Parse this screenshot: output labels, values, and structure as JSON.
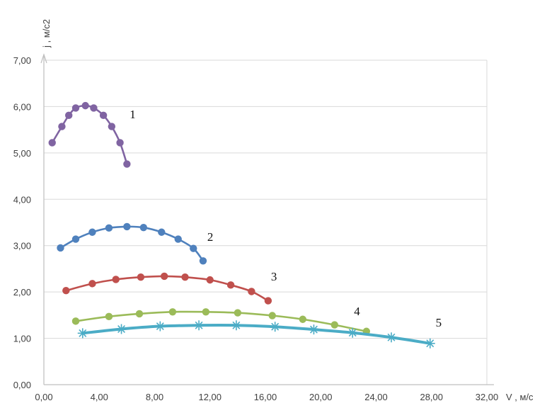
{
  "chart_data": {
    "type": "line",
    "xlabel": "V , м/с",
    "ylabel": "j , м/с2",
    "xlim": [
      0,
      32
    ],
    "ylim": [
      0,
      7
    ],
    "xticks": [
      "0,00",
      "4,00",
      "8,00",
      "12,00",
      "16,00",
      "20,00",
      "24,00",
      "28,00",
      "32,00"
    ],
    "yticks": [
      "0,00",
      "1,00",
      "2,00",
      "3,00",
      "4,00",
      "5,00",
      "6,00",
      "7,00"
    ],
    "grid": true,
    "legend": "none",
    "series": [
      {
        "name": "1",
        "color": "#8064a2",
        "marker": "circle",
        "points": [
          [
            0.6,
            5.22
          ],
          [
            1.3,
            5.57
          ],
          [
            1.8,
            5.81
          ],
          [
            2.3,
            5.97
          ],
          [
            3.0,
            6.02
          ],
          [
            3.6,
            5.97
          ],
          [
            4.3,
            5.81
          ],
          [
            4.9,
            5.57
          ],
          [
            5.5,
            5.22
          ],
          [
            6.0,
            4.76
          ]
        ]
      },
      {
        "name": "2",
        "color": "#4f81bd",
        "marker": "circle",
        "points": [
          [
            1.2,
            2.95
          ],
          [
            2.3,
            3.14
          ],
          [
            3.5,
            3.29
          ],
          [
            4.7,
            3.38
          ],
          [
            6.0,
            3.41
          ],
          [
            7.2,
            3.39
          ],
          [
            8.5,
            3.29
          ],
          [
            9.7,
            3.14
          ],
          [
            10.8,
            2.94
          ],
          [
            11.5,
            2.67
          ]
        ]
      },
      {
        "name": "3",
        "color": "#c0504d",
        "marker": "circle",
        "points": [
          [
            1.6,
            2.03
          ],
          [
            3.5,
            2.18
          ],
          [
            5.2,
            2.27
          ],
          [
            7.0,
            2.32
          ],
          [
            8.7,
            2.34
          ],
          [
            10.2,
            2.32
          ],
          [
            12.0,
            2.26
          ],
          [
            13.5,
            2.15
          ],
          [
            15.0,
            2.01
          ],
          [
            16.2,
            1.81
          ]
        ]
      },
      {
        "name": "4",
        "color": "#9bbb59",
        "marker": "circle",
        "points": [
          [
            2.3,
            1.37
          ],
          [
            4.7,
            1.47
          ],
          [
            6.9,
            1.53
          ],
          [
            9.3,
            1.57
          ],
          [
            11.7,
            1.57
          ],
          [
            14.0,
            1.55
          ],
          [
            16.5,
            1.49
          ],
          [
            18.7,
            1.41
          ],
          [
            21.0,
            1.29
          ],
          [
            23.3,
            1.15
          ]
        ]
      },
      {
        "name": "5",
        "color": "#4bacc6",
        "marker": "star",
        "points": [
          [
            2.8,
            1.11
          ],
          [
            5.6,
            1.2
          ],
          [
            8.4,
            1.26
          ],
          [
            11.2,
            1.28
          ],
          [
            13.9,
            1.28
          ],
          [
            16.7,
            1.25
          ],
          [
            19.5,
            1.19
          ],
          [
            22.3,
            1.12
          ],
          [
            25.1,
            1.02
          ],
          [
            27.9,
            0.89
          ]
        ]
      }
    ],
    "annotations": [
      {
        "text": "1",
        "x": 6.2,
        "y": 5.75
      },
      {
        "text": "2",
        "x": 11.8,
        "y": 3.1
      },
      {
        "text": "3",
        "x": 16.4,
        "y": 2.25
      },
      {
        "text": "4",
        "x": 22.4,
        "y": 1.5
      },
      {
        "text": "5",
        "x": 28.3,
        "y": 1.25
      }
    ]
  }
}
